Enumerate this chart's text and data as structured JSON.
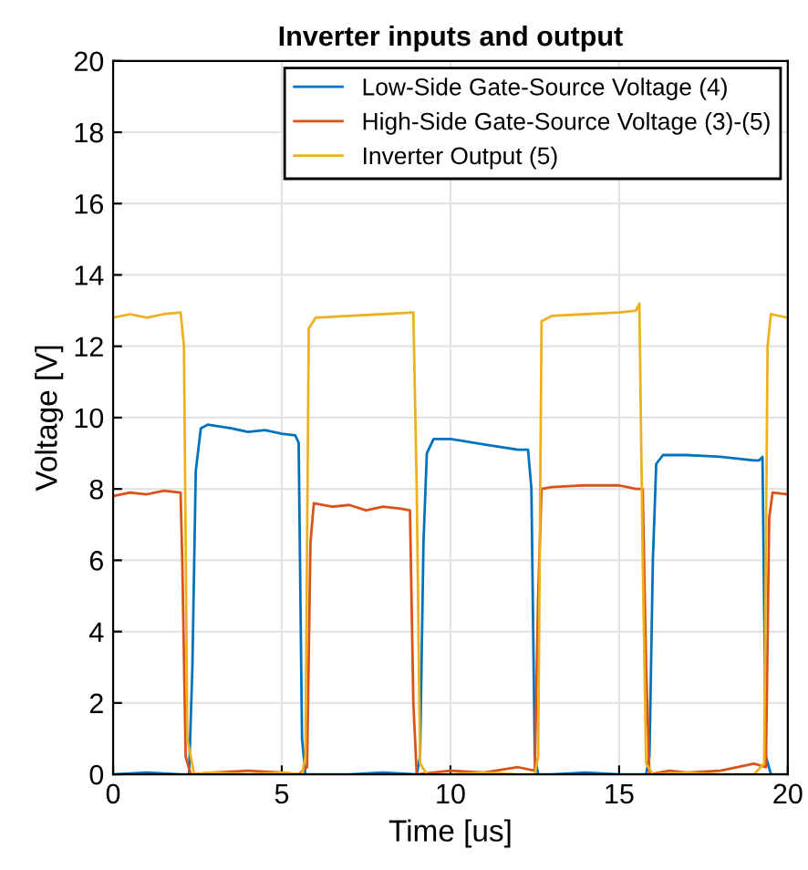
{
  "chart_data": {
    "type": "line",
    "title": "Inverter inputs and output",
    "xlabel": "Time [us]",
    "ylabel": "Voltage [V]",
    "xlim": [
      0,
      20
    ],
    "ylim": [
      0,
      20
    ],
    "xticks": [
      0,
      5,
      10,
      15,
      20
    ],
    "yticks": [
      0,
      2,
      4,
      6,
      8,
      10,
      12,
      14,
      16,
      18,
      20
    ],
    "grid": true,
    "legend": "top right",
    "line_style": "solid",
    "series": [
      {
        "name": "Low-Side Gate-Source Voltage (4)",
        "color": "#0072bd",
        "x": [
          0,
          1,
          2,
          2.25,
          2.35,
          2.45,
          2.6,
          2.8,
          3.5,
          4,
          4.5,
          5,
          5.4,
          5.5,
          5.6,
          5.7,
          6,
          7,
          8,
          9,
          9.1,
          9.2,
          9.3,
          9.5,
          10,
          11,
          12,
          12.3,
          12.4,
          12.5,
          12.6,
          13,
          14,
          15,
          15.8,
          15.9,
          16.0,
          16.1,
          16.3,
          17,
          18,
          19,
          19.15,
          19.25,
          19.35,
          19.5,
          20
        ],
        "values": [
          0,
          0.05,
          0,
          0,
          3,
          8.5,
          9.7,
          9.8,
          9.7,
          9.6,
          9.65,
          9.55,
          9.5,
          9.3,
          1,
          0,
          0,
          0,
          0.05,
          0,
          0.5,
          6.5,
          9.0,
          9.4,
          9.4,
          9.25,
          9.1,
          9.1,
          8,
          0.5,
          0,
          0,
          0.05,
          0,
          0,
          0.5,
          6,
          8.7,
          8.95,
          8.95,
          8.9,
          8.8,
          8.8,
          8.9,
          0.5,
          0,
          0
        ]
      },
      {
        "name": "High-Side Gate-Source Voltage (3)-(5)",
        "color": "#d95319",
        "x": [
          0,
          0.5,
          1,
          1.5,
          2,
          2.05,
          2.15,
          2.3,
          3,
          4,
          5,
          5.5,
          5.75,
          5.85,
          5.95,
          6.5,
          7,
          7.5,
          8,
          8.5,
          8.8,
          8.9,
          9.0,
          9.5,
          10,
          11,
          12,
          12.5,
          12.6,
          12.7,
          13,
          14,
          15,
          15.5,
          15.7,
          15.8,
          15.9,
          16.5,
          17,
          18,
          19,
          19.35,
          19.45,
          19.55,
          20
        ],
        "values": [
          7.8,
          7.9,
          7.85,
          7.95,
          7.9,
          6,
          0.5,
          0,
          0.05,
          0.1,
          0.05,
          0,
          0.2,
          6.5,
          7.6,
          7.5,
          7.55,
          7.4,
          7.5,
          7.45,
          7.4,
          2,
          0,
          0.05,
          0.1,
          0.05,
          0.2,
          0.1,
          5,
          8.0,
          8.05,
          8.1,
          8.1,
          8.0,
          8.0,
          3,
          0,
          0.1,
          0.05,
          0.1,
          0.3,
          0.2,
          7.2,
          7.9,
          7.85
        ]
      },
      {
        "name": "Inverter Output (5)",
        "color": "#edb120",
        "x": [
          0,
          0.5,
          1,
          1.5,
          2,
          2.1,
          2.2,
          2.4,
          3,
          4,
          5,
          5.6,
          5.7,
          5.8,
          6,
          7,
          8,
          8.9,
          9.0,
          9.1,
          9.3,
          10,
          11,
          12,
          12.5,
          12.6,
          12.7,
          13,
          14,
          15,
          15.5,
          15.6,
          15.7,
          15.8,
          16,
          17,
          18,
          19,
          19.3,
          19.4,
          19.5,
          20
        ],
        "values": [
          12.8,
          12.9,
          12.8,
          12.9,
          12.95,
          12,
          1,
          0,
          0.05,
          0,
          0.05,
          0,
          0.5,
          12.5,
          12.8,
          12.85,
          12.9,
          12.95,
          8,
          0.3,
          0,
          0,
          0.05,
          0,
          0,
          0.5,
          12.7,
          12.85,
          12.9,
          12.95,
          13.0,
          13.2,
          6,
          0.3,
          0,
          0.05,
          0,
          0,
          0.3,
          12,
          12.9,
          12.8
        ]
      }
    ]
  }
}
